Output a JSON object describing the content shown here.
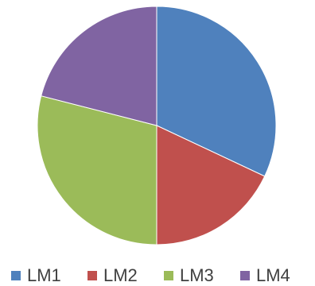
{
  "chart_data": {
    "type": "pie",
    "categories": [
      "LM1",
      "LM2",
      "LM3",
      "LM4"
    ],
    "values": [
      32,
      18,
      29,
      21
    ],
    "colors": [
      "#4f81bd",
      "#c0504d",
      "#9bbb59",
      "#8064a2"
    ],
    "legend": "bottom"
  }
}
